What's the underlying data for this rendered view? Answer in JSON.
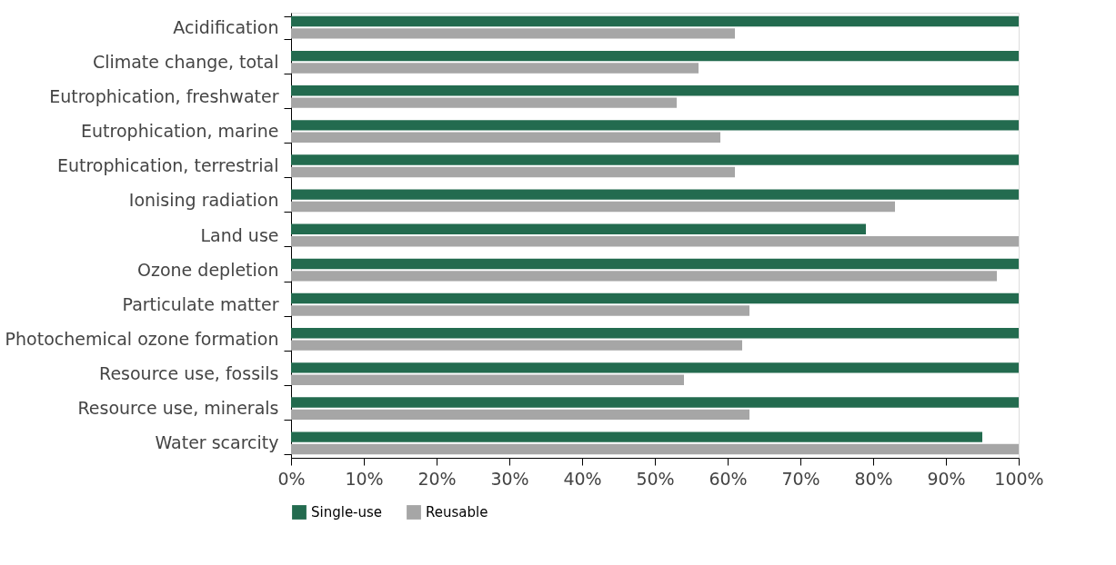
{
  "chart_data": {
    "type": "bar",
    "orientation": "horizontal",
    "categories": [
      "Acidification",
      "Climate change, total",
      "Eutrophication, freshwater",
      "Eutrophication, marine",
      "Eutrophication, terrestrial",
      "Ionising radiation",
      "Land use",
      "Ozone depletion",
      "Particulate matter",
      "Photochemical ozone formation",
      "Resource use, fossils",
      "Resource use, minerals",
      "Water scarcity"
    ],
    "series": [
      {
        "name": "Single-use",
        "color": "#236b4f",
        "values": [
          100,
          100,
          100,
          100,
          100,
          100,
          79,
          100,
          100,
          100,
          100,
          100,
          95
        ]
      },
      {
        "name": "Reusable",
        "color": "#a6a6a6",
        "values": [
          61,
          56,
          53,
          59,
          61,
          83,
          100,
          97,
          63,
          62,
          54,
          63,
          100
        ]
      }
    ],
    "xlim": [
      0,
      100
    ],
    "xticks": [
      {
        "value": 0,
        "label": "0%"
      },
      {
        "value": 10,
        "label": "10%"
      },
      {
        "value": 20,
        "label": "20%"
      },
      {
        "value": 30,
        "label": "30%"
      },
      {
        "value": 40,
        "label": "40%"
      },
      {
        "value": 50,
        "label": "50%"
      },
      {
        "value": 60,
        "label": "60%"
      },
      {
        "value": 70,
        "label": "70%"
      },
      {
        "value": 80,
        "label": "80%"
      },
      {
        "value": 90,
        "label": "90%"
      },
      {
        "value": 100,
        "label": "100%"
      }
    ],
    "grid": false,
    "legend": "bottom"
  }
}
